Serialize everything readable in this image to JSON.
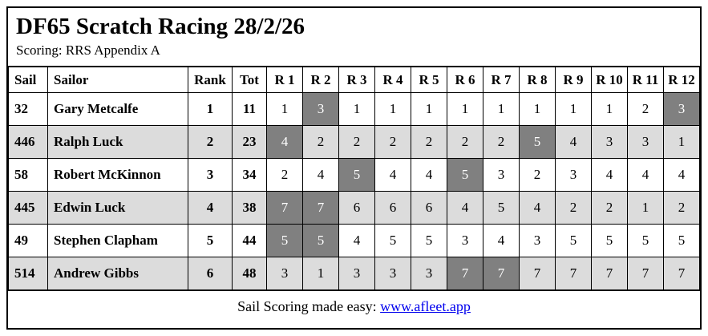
{
  "header": {
    "title": "DF65 Scratch Racing 28/2/26",
    "subtitle": "Scoring: RRS Appendix A"
  },
  "table": {
    "columns": [
      "Sail",
      "Sailor",
      "Rank",
      "Tot",
      "R 1",
      "R 2",
      "R 3",
      "R 4",
      "R 5",
      "R 6",
      "R 7",
      "R 8",
      "R 9",
      "R 10",
      "R 11",
      "R 12"
    ],
    "rows": [
      {
        "sail": "32",
        "sailor": "Gary Metcalfe",
        "rank": "1",
        "tot": "11",
        "races": [
          {
            "value": "1",
            "discard": false
          },
          {
            "value": "3",
            "discard": true
          },
          {
            "value": "1",
            "discard": false
          },
          {
            "value": "1",
            "discard": false
          },
          {
            "value": "1",
            "discard": false
          },
          {
            "value": "1",
            "discard": false
          },
          {
            "value": "1",
            "discard": false
          },
          {
            "value": "1",
            "discard": false
          },
          {
            "value": "1",
            "discard": false
          },
          {
            "value": "1",
            "discard": false
          },
          {
            "value": "2",
            "discard": false
          },
          {
            "value": "3",
            "discard": true
          }
        ]
      },
      {
        "sail": "446",
        "sailor": "Ralph Luck",
        "rank": "2",
        "tot": "23",
        "races": [
          {
            "value": "4",
            "discard": true
          },
          {
            "value": "2",
            "discard": false
          },
          {
            "value": "2",
            "discard": false
          },
          {
            "value": "2",
            "discard": false
          },
          {
            "value": "2",
            "discard": false
          },
          {
            "value": "2",
            "discard": false
          },
          {
            "value": "2",
            "discard": false
          },
          {
            "value": "5",
            "discard": true
          },
          {
            "value": "4",
            "discard": false
          },
          {
            "value": "3",
            "discard": false
          },
          {
            "value": "3",
            "discard": false
          },
          {
            "value": "1",
            "discard": false
          }
        ]
      },
      {
        "sail": "58",
        "sailor": "Robert McKinnon",
        "rank": "3",
        "tot": "34",
        "races": [
          {
            "value": "2",
            "discard": false
          },
          {
            "value": "4",
            "discard": false
          },
          {
            "value": "5",
            "discard": true
          },
          {
            "value": "4",
            "discard": false
          },
          {
            "value": "4",
            "discard": false
          },
          {
            "value": "5",
            "discard": true
          },
          {
            "value": "3",
            "discard": false
          },
          {
            "value": "2",
            "discard": false
          },
          {
            "value": "3",
            "discard": false
          },
          {
            "value": "4",
            "discard": false
          },
          {
            "value": "4",
            "discard": false
          },
          {
            "value": "4",
            "discard": false
          }
        ]
      },
      {
        "sail": "445",
        "sailor": "Edwin Luck",
        "rank": "4",
        "tot": "38",
        "races": [
          {
            "value": "7",
            "discard": true
          },
          {
            "value": "7",
            "discard": true
          },
          {
            "value": "6",
            "discard": false
          },
          {
            "value": "6",
            "discard": false
          },
          {
            "value": "6",
            "discard": false
          },
          {
            "value": "4",
            "discard": false
          },
          {
            "value": "5",
            "discard": false
          },
          {
            "value": "4",
            "discard": false
          },
          {
            "value": "2",
            "discard": false
          },
          {
            "value": "2",
            "discard": false
          },
          {
            "value": "1",
            "discard": false
          },
          {
            "value": "2",
            "discard": false
          }
        ]
      },
      {
        "sail": "49",
        "sailor": "Stephen Clapham",
        "rank": "5",
        "tot": "44",
        "races": [
          {
            "value": "5",
            "discard": true
          },
          {
            "value": "5",
            "discard": true
          },
          {
            "value": "4",
            "discard": false
          },
          {
            "value": "5",
            "discard": false
          },
          {
            "value": "5",
            "discard": false
          },
          {
            "value": "3",
            "discard": false
          },
          {
            "value": "4",
            "discard": false
          },
          {
            "value": "3",
            "discard": false
          },
          {
            "value": "5",
            "discard": false
          },
          {
            "value": "5",
            "discard": false
          },
          {
            "value": "5",
            "discard": false
          },
          {
            "value": "5",
            "discard": false
          }
        ]
      },
      {
        "sail": "514",
        "sailor": "Andrew Gibbs",
        "rank": "6",
        "tot": "48",
        "races": [
          {
            "value": "3",
            "discard": false
          },
          {
            "value": "1",
            "discard": false
          },
          {
            "value": "3",
            "discard": false
          },
          {
            "value": "3",
            "discard": false
          },
          {
            "value": "3",
            "discard": false
          },
          {
            "value": "7",
            "discard": true
          },
          {
            "value": "7",
            "discard": true
          },
          {
            "value": "7",
            "discard": false
          },
          {
            "value": "7",
            "discard": false
          },
          {
            "value": "7",
            "discard": false
          },
          {
            "value": "7",
            "discard": false
          },
          {
            "value": "7",
            "discard": false
          }
        ]
      }
    ]
  },
  "footer": {
    "text": "Sail Scoring made easy: ",
    "link_label": "www.afleet.app"
  },
  "colors": {
    "discard_bg": "#808080",
    "discard_text": "#ffffff",
    "stripe_bg": "#dcdcdc",
    "link": "#0000ee",
    "border": "#000000"
  }
}
